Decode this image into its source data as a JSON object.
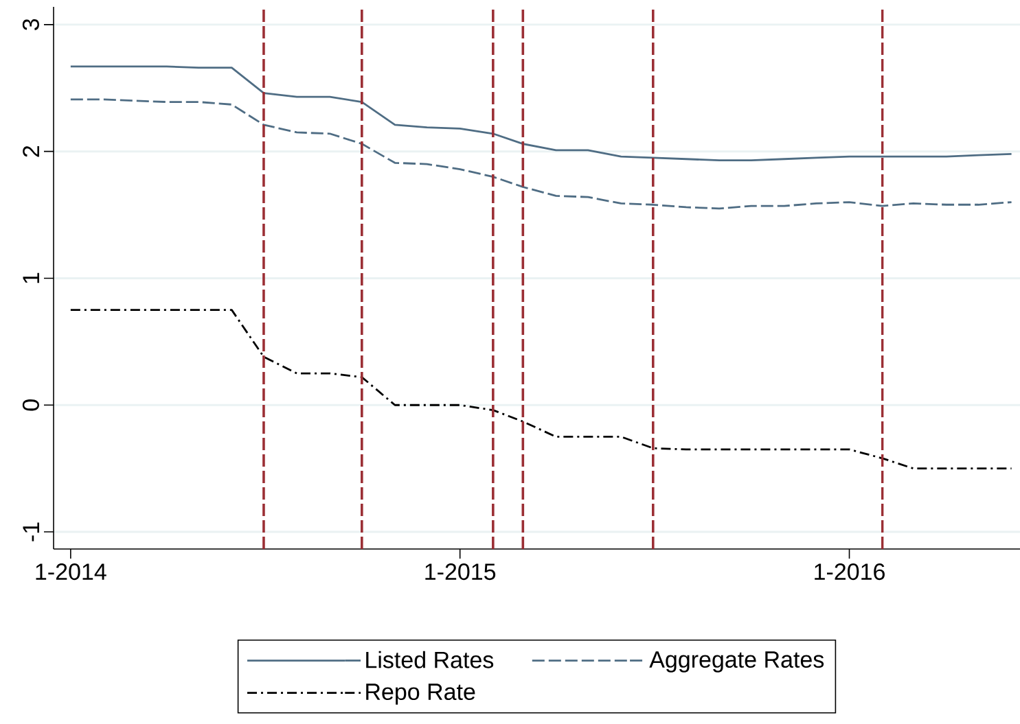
{
  "chart_data": {
    "type": "line",
    "x": [
      "2014-01",
      "2014-02",
      "2014-03",
      "2014-04",
      "2014-05",
      "2014-06",
      "2014-07",
      "2014-08",
      "2014-09",
      "2014-10",
      "2014-11",
      "2014-12",
      "2015-01",
      "2015-02",
      "2015-03",
      "2015-04",
      "2015-05",
      "2015-06",
      "2015-07",
      "2015-08",
      "2015-09",
      "2015-10",
      "2015-11",
      "2015-12",
      "2016-01",
      "2016-02",
      "2016-03",
      "2016-04",
      "2016-05",
      "2016-06"
    ],
    "series": [
      {
        "name": "Listed Rates",
        "color": "#4f6d84",
        "line_style": "solid",
        "values": [
          2.67,
          2.67,
          2.67,
          2.67,
          2.66,
          2.66,
          2.46,
          2.43,
          2.43,
          2.39,
          2.21,
          2.19,
          2.18,
          2.14,
          2.06,
          2.01,
          2.01,
          1.96,
          1.95,
          1.94,
          1.93,
          1.93,
          1.94,
          1.95,
          1.96,
          1.96,
          1.96,
          1.96,
          1.97,
          1.98
        ]
      },
      {
        "name": "Aggregate Rates",
        "color": "#4f6d84",
        "line_style": "dashed",
        "values": [
          2.41,
          2.41,
          2.4,
          2.39,
          2.39,
          2.37,
          2.21,
          2.15,
          2.14,
          2.06,
          1.91,
          1.9,
          1.86,
          1.8,
          1.72,
          1.65,
          1.64,
          1.59,
          1.58,
          1.56,
          1.55,
          1.57,
          1.57,
          1.59,
          1.6,
          1.57,
          1.59,
          1.58,
          1.58,
          1.6
        ]
      },
      {
        "name": "Repo Rate",
        "color": "#000000",
        "line_style": "dashdot",
        "values": [
          0.75,
          0.75,
          0.75,
          0.75,
          0.75,
          0.75,
          0.38,
          0.25,
          0.25,
          0.22,
          0,
          0,
          0,
          -0.04,
          -0.13,
          -0.25,
          -0.25,
          -0.25,
          -0.34,
          -0.35,
          -0.35,
          -0.35,
          -0.35,
          -0.35,
          -0.35,
          -0.42,
          -0.5,
          -0.5,
          -0.5,
          -0.5
        ]
      }
    ],
    "xlim": [
      "2013-12-16",
      "2016-06-09"
    ],
    "xticks": [
      {
        "value": "2014-01",
        "label": "1-2014"
      },
      {
        "value": "2015-01",
        "label": "1-2015"
      },
      {
        "value": "2016-01",
        "label": "1-2016"
      }
    ],
    "ylim": [
      -1.135,
      3.14
    ],
    "yticks": [
      -1,
      0,
      1,
      2,
      3
    ],
    "grid": "y",
    "legend": "bottom",
    "ref_lines": [
      {
        "axis": "x",
        "value": "2014-07",
        "color": "#9b2f35",
        "line_style": "dashed"
      },
      {
        "axis": "x",
        "value": "2014-10",
        "color": "#9b2f35",
        "line_style": "dashed"
      },
      {
        "axis": "x",
        "value": "2015-02",
        "color": "#9b2f35",
        "line_style": "dashed"
      },
      {
        "axis": "x",
        "value": "2015-03",
        "color": "#9b2f35",
        "line_style": "dashed"
      },
      {
        "axis": "x",
        "value": "2015-07",
        "color": "#9b2f35",
        "line_style": "dashed"
      },
      {
        "axis": "x",
        "value": "2016-02",
        "color": "#9b2f35",
        "line_style": "dashed"
      }
    ]
  }
}
